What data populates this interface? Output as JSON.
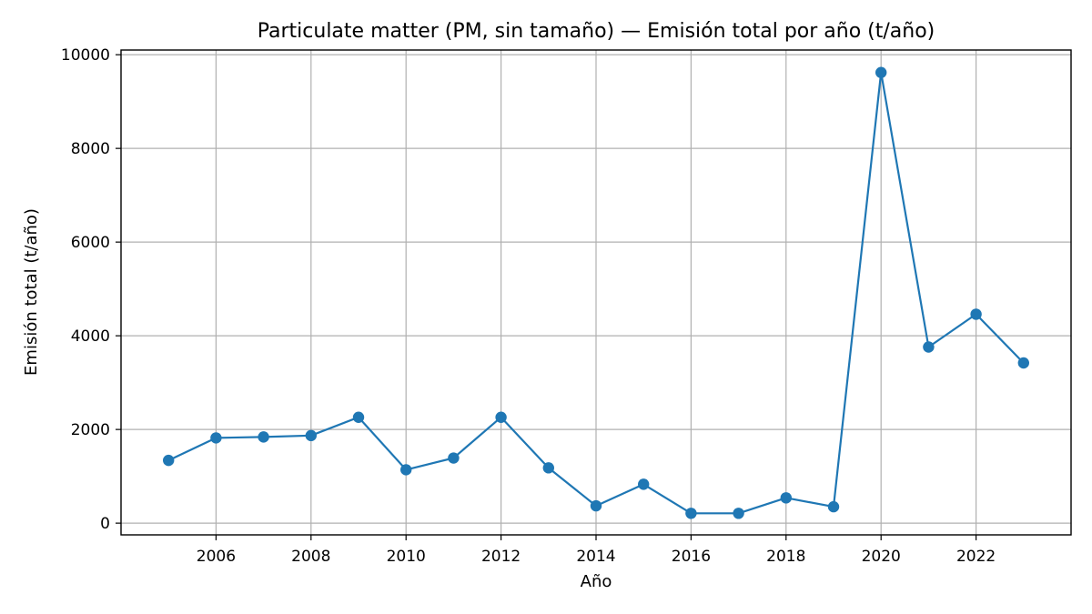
{
  "chart_data": {
    "type": "line",
    "title": "Particulate matter (PM, sin tamaño) — Emisión total por año (t/año)",
    "xlabel": "Año",
    "ylabel": "Emisión total (t/año)",
    "xlim": [
      2004.0,
      2024.0
    ],
    "ylim": [
      -250,
      10100
    ],
    "x_ticks": [
      2006,
      2008,
      2010,
      2012,
      2014,
      2016,
      2018,
      2020,
      2022
    ],
    "y_ticks": [
      0,
      2000,
      4000,
      6000,
      8000,
      10000
    ],
    "grid": true,
    "series": [
      {
        "color": "#1f77b4",
        "marker": "circle",
        "x": [
          2005,
          2006,
          2007,
          2008,
          2009,
          2010,
          2011,
          2012,
          2013,
          2014,
          2015,
          2016,
          2017,
          2018,
          2019,
          2020,
          2021,
          2022,
          2023
        ],
        "values": [
          1340,
          1820,
          1840,
          1870,
          2260,
          1140,
          1390,
          2260,
          1180,
          370,
          830,
          210,
          210,
          540,
          350,
          9620,
          3760,
          4460,
          3420
        ]
      }
    ]
  }
}
